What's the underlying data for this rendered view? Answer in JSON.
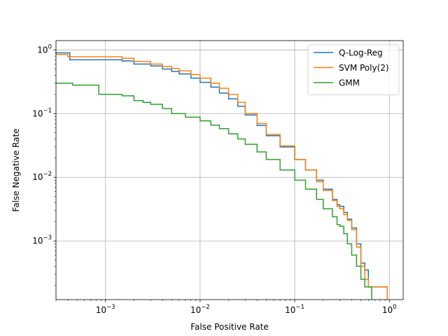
{
  "chart_data": {
    "type": "line",
    "title": "",
    "xlabel": "False Positive Rate",
    "ylabel": "False Negative Rate",
    "xscale": "log",
    "yscale": "log",
    "xlim": [
      0.0003,
      1.4
    ],
    "ylim": [
      0.00012,
      1.4
    ],
    "grid": true,
    "legend_position": "top-right",
    "x_ticks": [
      {
        "value": 0.001,
        "base": "10",
        "exp": "−3"
      },
      {
        "value": 0.01,
        "base": "10",
        "exp": "−2"
      },
      {
        "value": 0.1,
        "base": "10",
        "exp": "−1"
      },
      {
        "value": 1,
        "base": "10",
        "exp": "0"
      }
    ],
    "y_ticks": [
      {
        "value": 0.001,
        "base": "10",
        "exp": "−3"
      },
      {
        "value": 0.01,
        "base": "10",
        "exp": "−2"
      },
      {
        "value": 0.1,
        "base": "10",
        "exp": "−1"
      },
      {
        "value": 1,
        "base": "10",
        "exp": "0"
      }
    ],
    "series": [
      {
        "name": "Q-Log-Reg",
        "color": "#1f77b4",
        "x": [
          0.0003,
          0.00042,
          0.00042,
          0.0015,
          0.002,
          0.003,
          0.004,
          0.005,
          0.006,
          0.008,
          0.01,
          0.013,
          0.016,
          0.02,
          0.025,
          0.03,
          0.04,
          0.05,
          0.07,
          0.1,
          0.13,
          0.17,
          0.2,
          0.25,
          0.28,
          0.3,
          0.33,
          0.36,
          0.4,
          0.45,
          0.5,
          0.55,
          0.6,
          0.6,
          0.95,
          0.95
        ],
        "y": [
          0.9,
          0.9,
          0.7,
          0.67,
          0.6,
          0.56,
          0.5,
          0.46,
          0.42,
          0.36,
          0.31,
          0.26,
          0.21,
          0.17,
          0.13,
          0.095,
          0.065,
          0.045,
          0.03,
          0.019,
          0.013,
          0.009,
          0.0065,
          0.0045,
          0.0037,
          0.0035,
          0.0028,
          0.0022,
          0.0016,
          0.0009,
          0.00045,
          0.00035,
          0.00025,
          0.00019,
          0.00019,
          0.00012
        ]
      },
      {
        "name": "SVM Poly(2)",
        "color": "#ff7f0e",
        "x": [
          0.0003,
          0.0004,
          0.0004,
          0.0015,
          0.002,
          0.003,
          0.004,
          0.005,
          0.006,
          0.008,
          0.01,
          0.013,
          0.016,
          0.02,
          0.025,
          0.03,
          0.04,
          0.05,
          0.07,
          0.1,
          0.13,
          0.17,
          0.2,
          0.25,
          0.28,
          0.3,
          0.33,
          0.36,
          0.4,
          0.45,
          0.5,
          0.55,
          0.6,
          0.95,
          0.95
        ],
        "y": [
          0.85,
          0.85,
          0.78,
          0.74,
          0.66,
          0.6,
          0.55,
          0.51,
          0.47,
          0.41,
          0.36,
          0.3,
          0.25,
          0.2,
          0.15,
          0.1,
          0.07,
          0.047,
          0.031,
          0.019,
          0.013,
          0.0085,
          0.0062,
          0.0043,
          0.0035,
          0.0032,
          0.0026,
          0.0021,
          0.0015,
          0.0008,
          0.0004,
          0.00025,
          0.00019,
          0.00019,
          0.00012
        ]
      },
      {
        "name": "GMM",
        "color": "#2ca02c",
        "x": [
          0.0003,
          0.00045,
          0.00045,
          0.00085,
          0.00085,
          0.0015,
          0.002,
          0.0025,
          0.0025,
          0.003,
          0.004,
          0.005,
          0.007,
          0.01,
          0.013,
          0.016,
          0.02,
          0.025,
          0.03,
          0.04,
          0.05,
          0.07,
          0.1,
          0.13,
          0.17,
          0.2,
          0.25,
          0.28,
          0.3,
          0.33,
          0.36,
          0.4,
          0.45,
          0.5,
          0.55,
          0.6,
          0.65,
          0.65
        ],
        "y": [
          0.3,
          0.3,
          0.28,
          0.28,
          0.2,
          0.19,
          0.16,
          0.155,
          0.15,
          0.14,
          0.12,
          0.1,
          0.088,
          0.077,
          0.066,
          0.058,
          0.048,
          0.04,
          0.033,
          0.025,
          0.019,
          0.013,
          0.009,
          0.0065,
          0.0045,
          0.0032,
          0.0024,
          0.0018,
          0.0017,
          0.0013,
          0.0009,
          0.0006,
          0.0004,
          0.00025,
          0.00019,
          0.00019,
          0.00019,
          0.00012
        ]
      }
    ]
  }
}
